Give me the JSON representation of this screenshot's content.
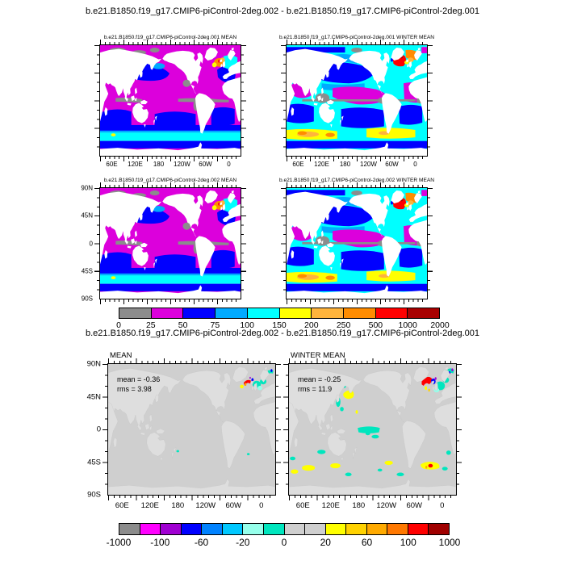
{
  "figure": {
    "title": "b.e21.B1850.f19_g17.CMIP6-piControl-2deg.002 - b.e21.B1850.f19_g17.CMIP6-piControl-2deg.001",
    "diff_section_title": "b.e21.B1850.f19_g17.CMIP6-piControl-2deg.002 - b.e21.B1850.f19_g17.CMIP6-piControl-2deg.001"
  },
  "panels": {
    "top_left": {
      "title": "b.e21.B1850.f19_g17.CMIP6-piControl-2deg.001 MEAN"
    },
    "top_right": {
      "title": "b.e21.B1850.f19_g17.CMIP6-piControl-2deg.001 WINTER MEAN"
    },
    "mid_left": {
      "title": "b.e21.B1850.f19_g17.CMIP6-piControl-2deg.002 MEAN"
    },
    "mid_right": {
      "title": "b.e21.B1850.f19_g17.CMIP6-piControl-2deg.002 WINTER MEAN"
    },
    "bottom_left": {
      "label": "MEAN",
      "mean": "mean = -0.36",
      "rms": "rms = 3.98"
    },
    "bottom_right": {
      "label": "WINTER MEAN",
      "mean": "mean = -0.25",
      "rms": "rms = 11.9"
    }
  },
  "axes": {
    "lon_labels": [
      "60E",
      "120E",
      "180",
      "120W",
      "60W",
      "0"
    ],
    "lat_labels": [
      "90N",
      "45N",
      "0",
      "45S",
      "90S"
    ]
  },
  "colorbar_top": {
    "labels": [
      "0",
      "25",
      "50",
      "75",
      "100",
      "150",
      "200",
      "250",
      "500",
      "1000",
      "2000"
    ],
    "colors": [
      "#8C8C8C",
      "#DC00DC",
      "#0000FF",
      "#00AAFF",
      "#00FFFF",
      "#FFFF00",
      "#FFB43C",
      "#FF8C00",
      "#FF0000",
      "#A80000"
    ]
  },
  "colorbar_bottom": {
    "labels": [
      "-1000",
      "-100",
      "-60",
      "-20",
      "0",
      "20",
      "60",
      "100",
      "1000"
    ],
    "colors": [
      "#8C8C8C",
      "#FF00FF",
      "#A000D2",
      "#0000FF",
      "#0082FF",
      "#00C8FF",
      "#96FFEB",
      "#00E6BE",
      "#CFCFCF",
      "#CFCFCF",
      "#FFFF00",
      "#FFD200",
      "#FFAA00",
      "#FF7800",
      "#FF0000",
      "#A00000"
    ]
  },
  "chart_data": {
    "type": "heatmap",
    "subtype": "global-latlon-map-panels",
    "title": "b.e21.B1850.f19_g17.CMIP6-piControl-2deg.002 - b.e21.B1850.f19_g17.CMIP6-piControl-2deg.001",
    "lon_ticks": [
      "60E",
      "120E",
      "180",
      "120W",
      "60W",
      "0"
    ],
    "lat_ticks": [
      "90N",
      "45N",
      "0",
      "45S",
      "90S"
    ],
    "panels": [
      {
        "row": 1,
        "col": 1,
        "title": "b.e21.B1850.f19_g17.CMIP6-piControl-2deg.001 MEAN",
        "case": "b.e21.B1850.f19_g17.CMIP6-piControl-2deg.001",
        "season": "MEAN",
        "colorbar": "absolute"
      },
      {
        "row": 1,
        "col": 2,
        "title": "b.e21.B1850.f19_g17.CMIP6-piControl-2deg.001 WINTER MEAN",
        "case": "b.e21.B1850.f19_g17.CMIP6-piControl-2deg.001",
        "season": "WINTER MEAN",
        "colorbar": "absolute"
      },
      {
        "row": 2,
        "col": 1,
        "title": "b.e21.B1850.f19_g17.CMIP6-piControl-2deg.002 MEAN",
        "case": "b.e21.B1850.f19_g17.CMIP6-piControl-2deg.002",
        "season": "MEAN",
        "colorbar": "absolute"
      },
      {
        "row": 2,
        "col": 2,
        "title": "b.e21.B1850.f19_g17.CMIP6-piControl-2deg.002 WINTER MEAN",
        "case": "b.e21.B1850.f19_g17.CMIP6-piControl-2deg.002",
        "season": "WINTER MEAN",
        "colorbar": "absolute"
      },
      {
        "row": 3,
        "col": 1,
        "title": "MEAN",
        "kind": "difference (002 - 001)",
        "mean": -0.36,
        "rms": 3.98,
        "colorbar": "difference"
      },
      {
        "row": 3,
        "col": 2,
        "title": "WINTER MEAN",
        "kind": "difference (002 - 001)",
        "mean": -0.25,
        "rms": 11.9,
        "colorbar": "difference"
      }
    ],
    "colorbars": {
      "absolute": {
        "levels": [
          0,
          25,
          50,
          75,
          100,
          150,
          200,
          250,
          500,
          1000,
          2000
        ],
        "colors": [
          "#8C8C8C",
          "#DC00DC",
          "#0000FF",
          "#00AAFF",
          "#00FFFF",
          "#FFFF00",
          "#FFB43C",
          "#FF8C00",
          "#FF0000",
          "#A80000"
        ]
      },
      "difference": {
        "labeled_levels": [
          -1000,
          -100,
          -60,
          -20,
          0,
          20,
          60,
          100,
          1000
        ],
        "n_segments": 16,
        "colors": [
          "#8C8C8C",
          "#FF00FF",
          "#A000D2",
          "#0000FF",
          "#0082FF",
          "#00C8FF",
          "#96FFEB",
          "#00E6BE",
          "#CFCFCF",
          "#CFCFCF",
          "#FFFF00",
          "#FFD200",
          "#FFAA00",
          "#FF7800",
          "#FF0000",
          "#A00000"
        ]
      }
    }
  }
}
